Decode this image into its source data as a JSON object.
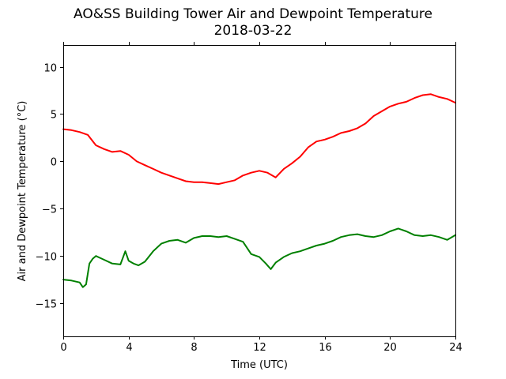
{
  "chart_data": {
    "type": "line",
    "title": "AO&SS Building Tower Air and Dewpoint Temperature",
    "subtitle": "2018-03-22",
    "xlabel": "Time (UTC)",
    "ylabel": "Air and Dewpoint Temperature (°C)",
    "xlim": [
      0,
      24
    ],
    "ylim": [
      -18.5,
      12.3
    ],
    "xticks": [
      0,
      4,
      8,
      12,
      16,
      20,
      24
    ],
    "yticks": [
      -15,
      -10,
      -5,
      0,
      5,
      10
    ],
    "grid": false,
    "legend": "none",
    "series": [
      {
        "color": "#ff0000",
        "x": [
          0,
          0.5,
          1,
          1.5,
          2,
          2.5,
          3,
          3.5,
          4,
          4.5,
          5,
          5.5,
          6,
          6.5,
          7,
          7.5,
          8,
          8.5,
          9,
          9.5,
          10,
          10.5,
          11,
          11.5,
          12,
          12.5,
          13,
          13.5,
          14,
          14.5,
          15,
          15.5,
          16,
          16.5,
          17,
          17.5,
          18,
          18.5,
          19,
          19.5,
          20,
          20.5,
          21,
          21.5,
          22,
          22.5,
          23,
          23.5,
          24
        ],
        "values": [
          3.4,
          3.3,
          3.1,
          2.8,
          1.7,
          1.3,
          1.0,
          1.1,
          0.7,
          0.0,
          -0.4,
          -0.8,
          -1.2,
          -1.5,
          -1.8,
          -2.1,
          -2.2,
          -2.2,
          -2.3,
          -2.4,
          -2.2,
          -2.0,
          -1.5,
          -1.2,
          -1.0,
          -1.2,
          -1.7,
          -0.8,
          -0.2,
          0.5,
          1.5,
          2.1,
          2.3,
          2.6,
          3.0,
          3.2,
          3.5,
          4.0,
          4.8,
          5.3,
          5.8,
          6.1,
          6.3,
          6.7,
          7.0,
          7.1,
          6.8,
          6.6,
          6.2
        ]
      },
      {
        "color": "#008000",
        "x": [
          0,
          0.5,
          1,
          1.2,
          1.4,
          1.6,
          1.8,
          2,
          2.5,
          3,
          3.5,
          3.8,
          4,
          4.3,
          4.6,
          5,
          5.5,
          6,
          6.5,
          7,
          7.5,
          8,
          8.5,
          9,
          9.5,
          10,
          10.5,
          11,
          11.5,
          12,
          12.4,
          12.7,
          13,
          13.5,
          14,
          14.5,
          15,
          15.5,
          16,
          16.5,
          17,
          17.5,
          18,
          18.5,
          19,
          19.5,
          20,
          20.5,
          21,
          21.5,
          22,
          22.5,
          23,
          23.5,
          24
        ],
        "values": [
          -12.5,
          -12.6,
          -12.8,
          -13.3,
          -13.0,
          -10.8,
          -10.3,
          -10.0,
          -10.4,
          -10.8,
          -10.9,
          -9.5,
          -10.5,
          -10.8,
          -11.0,
          -10.6,
          -9.5,
          -8.7,
          -8.4,
          -8.3,
          -8.6,
          -8.1,
          -7.9,
          -7.9,
          -8.0,
          -7.9,
          -8.2,
          -8.5,
          -9.8,
          -10.1,
          -10.8,
          -11.4,
          -10.7,
          -10.1,
          -9.7,
          -9.5,
          -9.2,
          -8.9,
          -8.7,
          -8.4,
          -8.0,
          -7.8,
          -7.7,
          -7.9,
          -8.0,
          -7.8,
          -7.4,
          -7.1,
          -7.4,
          -7.8,
          -7.9,
          -7.8,
          -8.0,
          -8.3,
          -7.8
        ]
      }
    ]
  }
}
